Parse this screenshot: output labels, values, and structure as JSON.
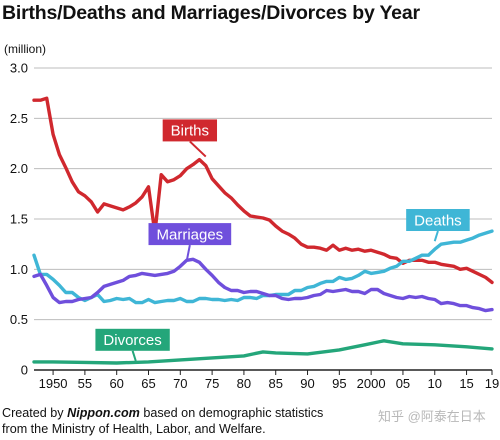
{
  "title": "Births/Deaths and Marriages/Divorces by Year",
  "unit_label": "(million)",
  "caption": {
    "prefix": "Created by ",
    "brand": "Nippon.com",
    "suffix": " based on demographic statistics",
    "line2": "from the Ministry of Health, Labor, and Welfare."
  },
  "watermark": "知乎 @阿泰在日本",
  "chart_data": {
    "type": "line",
    "title": "Births/Deaths and Marriages/Divorces by Year",
    "ylabel": "(million)",
    "xlabel": "",
    "ylim": [
      0,
      3.0
    ],
    "xlim": [
      1947,
      2019
    ],
    "grid": true,
    "y_ticks": [
      {
        "value": 0,
        "label": "0"
      },
      {
        "value": 0.5,
        "label": "0.5"
      },
      {
        "value": 1.0,
        "label": "1.0"
      },
      {
        "value": 1.5,
        "label": "1.5"
      },
      {
        "value": 2.0,
        "label": "2.0"
      },
      {
        "value": 2.5,
        "label": "2.5"
      },
      {
        "value": 3.0,
        "label": "3.0"
      }
    ],
    "x_ticks": [
      {
        "value": 1950,
        "label": "1950"
      },
      {
        "value": 1955,
        "label": "55"
      },
      {
        "value": 1960,
        "label": "60"
      },
      {
        "value": 1965,
        "label": "65"
      },
      {
        "value": 1970,
        "label": "70"
      },
      {
        "value": 1975,
        "label": "75"
      },
      {
        "value": 1980,
        "label": "80"
      },
      {
        "value": 1985,
        "label": "85"
      },
      {
        "value": 1990,
        "label": "90"
      },
      {
        "value": 1995,
        "label": "95"
      },
      {
        "value": 2000,
        "label": "2000"
      },
      {
        "value": 2005,
        "label": "05"
      },
      {
        "value": 2010,
        "label": "10"
      },
      {
        "value": 2015,
        "label": "15"
      },
      {
        "value": 2019,
        "label": "19"
      }
    ],
    "series": [
      {
        "name": "Births",
        "color": "#d0282e",
        "label_anchor": {
          "x": 1974,
          "y": 2.12
        },
        "label_position": {
          "x": 1971.5,
          "y": 2.38
        },
        "points": [
          [
            1947,
            2.68
          ],
          [
            1948,
            2.68
          ],
          [
            1949,
            2.7
          ],
          [
            1950,
            2.34
          ],
          [
            1951,
            2.14
          ],
          [
            1952,
            2.01
          ],
          [
            1953,
            1.87
          ],
          [
            1954,
            1.77
          ],
          [
            1955,
            1.73
          ],
          [
            1956,
            1.67
          ],
          [
            1957,
            1.57
          ],
          [
            1958,
            1.65
          ],
          [
            1959,
            1.63
          ],
          [
            1960,
            1.61
          ],
          [
            1961,
            1.59
          ],
          [
            1962,
            1.62
          ],
          [
            1963,
            1.66
          ],
          [
            1964,
            1.72
          ],
          [
            1965,
            1.82
          ],
          [
            1966,
            1.36
          ],
          [
            1967,
            1.94
          ],
          [
            1968,
            1.87
          ],
          [
            1969,
            1.89
          ],
          [
            1970,
            1.93
          ],
          [
            1971,
            2.0
          ],
          [
            1972,
            2.04
          ],
          [
            1973,
            2.09
          ],
          [
            1974,
            2.03
          ],
          [
            1975,
            1.9
          ],
          [
            1976,
            1.83
          ],
          [
            1977,
            1.76
          ],
          [
            1978,
            1.71
          ],
          [
            1979,
            1.64
          ],
          [
            1980,
            1.58
          ],
          [
            1981,
            1.53
          ],
          [
            1982,
            1.52
          ],
          [
            1983,
            1.51
          ],
          [
            1984,
            1.49
          ],
          [
            1985,
            1.43
          ],
          [
            1986,
            1.38
          ],
          [
            1987,
            1.35
          ],
          [
            1988,
            1.31
          ],
          [
            1989,
            1.25
          ],
          [
            1990,
            1.22
          ],
          [
            1991,
            1.22
          ],
          [
            1992,
            1.21
          ],
          [
            1993,
            1.19
          ],
          [
            1994,
            1.24
          ],
          [
            1995,
            1.19
          ],
          [
            1996,
            1.21
          ],
          [
            1997,
            1.19
          ],
          [
            1998,
            1.2
          ],
          [
            1999,
            1.18
          ],
          [
            2000,
            1.19
          ],
          [
            2001,
            1.17
          ],
          [
            2002,
            1.15
          ],
          [
            2003,
            1.12
          ],
          [
            2004,
            1.11
          ],
          [
            2005,
            1.06
          ],
          [
            2006,
            1.09
          ],
          [
            2007,
            1.09
          ],
          [
            2008,
            1.09
          ],
          [
            2009,
            1.07
          ],
          [
            2010,
            1.07
          ],
          [
            2011,
            1.05
          ],
          [
            2012,
            1.04
          ],
          [
            2013,
            1.03
          ],
          [
            2014,
            1.0
          ],
          [
            2015,
            1.01
          ],
          [
            2016,
            0.98
          ],
          [
            2017,
            0.95
          ],
          [
            2018,
            0.92
          ],
          [
            2019,
            0.87
          ]
        ]
      },
      {
        "name": "Deaths",
        "color": "#3fb6d6",
        "label_anchor": {
          "x": 2010,
          "y": 1.28
        },
        "label_position": {
          "x": 2010.5,
          "y": 1.49
        },
        "points": [
          [
            1947,
            1.14
          ],
          [
            1948,
            0.95
          ],
          [
            1949,
            0.95
          ],
          [
            1950,
            0.9
          ],
          [
            1951,
            0.84
          ],
          [
            1952,
            0.77
          ],
          [
            1953,
            0.77
          ],
          [
            1954,
            0.72
          ],
          [
            1955,
            0.69
          ],
          [
            1956,
            0.72
          ],
          [
            1957,
            0.75
          ],
          [
            1958,
            0.68
          ],
          [
            1959,
            0.69
          ],
          [
            1960,
            0.71
          ],
          [
            1961,
            0.7
          ],
          [
            1962,
            0.71
          ],
          [
            1963,
            0.67
          ],
          [
            1964,
            0.67
          ],
          [
            1965,
            0.7
          ],
          [
            1966,
            0.67
          ],
          [
            1967,
            0.68
          ],
          [
            1968,
            0.69
          ],
          [
            1969,
            0.69
          ],
          [
            1970,
            0.71
          ],
          [
            1971,
            0.68
          ],
          [
            1972,
            0.68
          ],
          [
            1973,
            0.71
          ],
          [
            1974,
            0.71
          ],
          [
            1975,
            0.7
          ],
          [
            1976,
            0.7
          ],
          [
            1977,
            0.69
          ],
          [
            1978,
            0.7
          ],
          [
            1979,
            0.69
          ],
          [
            1980,
            0.72
          ],
          [
            1981,
            0.72
          ],
          [
            1982,
            0.71
          ],
          [
            1983,
            0.74
          ],
          [
            1984,
            0.74
          ],
          [
            1985,
            0.75
          ],
          [
            1986,
            0.75
          ],
          [
            1987,
            0.75
          ],
          [
            1988,
            0.79
          ],
          [
            1989,
            0.79
          ],
          [
            1990,
            0.82
          ],
          [
            1991,
            0.83
          ],
          [
            1992,
            0.86
          ],
          [
            1993,
            0.88
          ],
          [
            1994,
            0.88
          ],
          [
            1995,
            0.92
          ],
          [
            1996,
            0.9
          ],
          [
            1997,
            0.91
          ],
          [
            1998,
            0.94
          ],
          [
            1999,
            0.98
          ],
          [
            2000,
            0.96
          ],
          [
            2001,
            0.97
          ],
          [
            2002,
            0.98
          ],
          [
            2003,
            1.01
          ],
          [
            2004,
            1.03
          ],
          [
            2005,
            1.08
          ],
          [
            2006,
            1.08
          ],
          [
            2007,
            1.11
          ],
          [
            2008,
            1.14
          ],
          [
            2009,
            1.14
          ],
          [
            2010,
            1.2
          ],
          [
            2011,
            1.25
          ],
          [
            2012,
            1.26
          ],
          [
            2013,
            1.27
          ],
          [
            2014,
            1.27
          ],
          [
            2015,
            1.29
          ],
          [
            2016,
            1.31
          ],
          [
            2017,
            1.34
          ],
          [
            2018,
            1.36
          ],
          [
            2019,
            1.38
          ]
        ]
      },
      {
        "name": "Marriages",
        "color": "#6f4fdc",
        "label_anchor": {
          "x": 1971,
          "y": 1.08
        },
        "label_position": {
          "x": 1971.5,
          "y": 1.35
        },
        "points": [
          [
            1947,
            0.93
          ],
          [
            1948,
            0.95
          ],
          [
            1949,
            0.84
          ],
          [
            1950,
            0.72
          ],
          [
            1951,
            0.67
          ],
          [
            1952,
            0.68
          ],
          [
            1953,
            0.68
          ],
          [
            1954,
            0.7
          ],
          [
            1955,
            0.71
          ],
          [
            1956,
            0.72
          ],
          [
            1957,
            0.77
          ],
          [
            1958,
            0.83
          ],
          [
            1959,
            0.85
          ],
          [
            1960,
            0.87
          ],
          [
            1961,
            0.89
          ],
          [
            1962,
            0.93
          ],
          [
            1963,
            0.94
          ],
          [
            1964,
            0.96
          ],
          [
            1965,
            0.95
          ],
          [
            1966,
            0.94
          ],
          [
            1967,
            0.95
          ],
          [
            1968,
            0.96
          ],
          [
            1969,
            0.98
          ],
          [
            1970,
            1.03
          ],
          [
            1971,
            1.09
          ],
          [
            1972,
            1.1
          ],
          [
            1973,
            1.07
          ],
          [
            1974,
            1.0
          ],
          [
            1975,
            0.94
          ],
          [
            1976,
            0.87
          ],
          [
            1977,
            0.82
          ],
          [
            1978,
            0.79
          ],
          [
            1979,
            0.79
          ],
          [
            1980,
            0.77
          ],
          [
            1981,
            0.78
          ],
          [
            1982,
            0.78
          ],
          [
            1983,
            0.76
          ],
          [
            1984,
            0.74
          ],
          [
            1985,
            0.74
          ],
          [
            1986,
            0.71
          ],
          [
            1987,
            0.7
          ],
          [
            1988,
            0.71
          ],
          [
            1989,
            0.71
          ],
          [
            1990,
            0.72
          ],
          [
            1991,
            0.74
          ],
          [
            1992,
            0.75
          ],
          [
            1993,
            0.79
          ],
          [
            1994,
            0.78
          ],
          [
            1995,
            0.79
          ],
          [
            1996,
            0.8
          ],
          [
            1997,
            0.78
          ],
          [
            1998,
            0.78
          ],
          [
            1999,
            0.76
          ],
          [
            2000,
            0.8
          ],
          [
            2001,
            0.8
          ],
          [
            2002,
            0.76
          ],
          [
            2003,
            0.74
          ],
          [
            2004,
            0.72
          ],
          [
            2005,
            0.71
          ],
          [
            2006,
            0.73
          ],
          [
            2007,
            0.72
          ],
          [
            2008,
            0.73
          ],
          [
            2009,
            0.71
          ],
          [
            2010,
            0.7
          ],
          [
            2011,
            0.66
          ],
          [
            2012,
            0.67
          ],
          [
            2013,
            0.66
          ],
          [
            2014,
            0.64
          ],
          [
            2015,
            0.64
          ],
          [
            2016,
            0.62
          ],
          [
            2017,
            0.61
          ],
          [
            2018,
            0.59
          ],
          [
            2019,
            0.6
          ]
        ]
      },
      {
        "name": "Divorces",
        "color": "#24a67a",
        "label_anchor": {
          "x": 1963,
          "y": 0.09
        },
        "label_position": {
          "x": 1962.5,
          "y": 0.3
        },
        "points": [
          [
            1947,
            0.08
          ],
          [
            1950,
            0.08
          ],
          [
            1955,
            0.075
          ],
          [
            1960,
            0.07
          ],
          [
            1965,
            0.08
          ],
          [
            1970,
            0.1
          ],
          [
            1975,
            0.12
          ],
          [
            1980,
            0.14
          ],
          [
            1983,
            0.18
          ],
          [
            1985,
            0.17
          ],
          [
            1990,
            0.16
          ],
          [
            1995,
            0.2
          ],
          [
            1999,
            0.25
          ],
          [
            2002,
            0.29
          ],
          [
            2005,
            0.26
          ],
          [
            2010,
            0.25
          ],
          [
            2015,
            0.23
          ],
          [
            2019,
            0.21
          ]
        ]
      }
    ]
  }
}
